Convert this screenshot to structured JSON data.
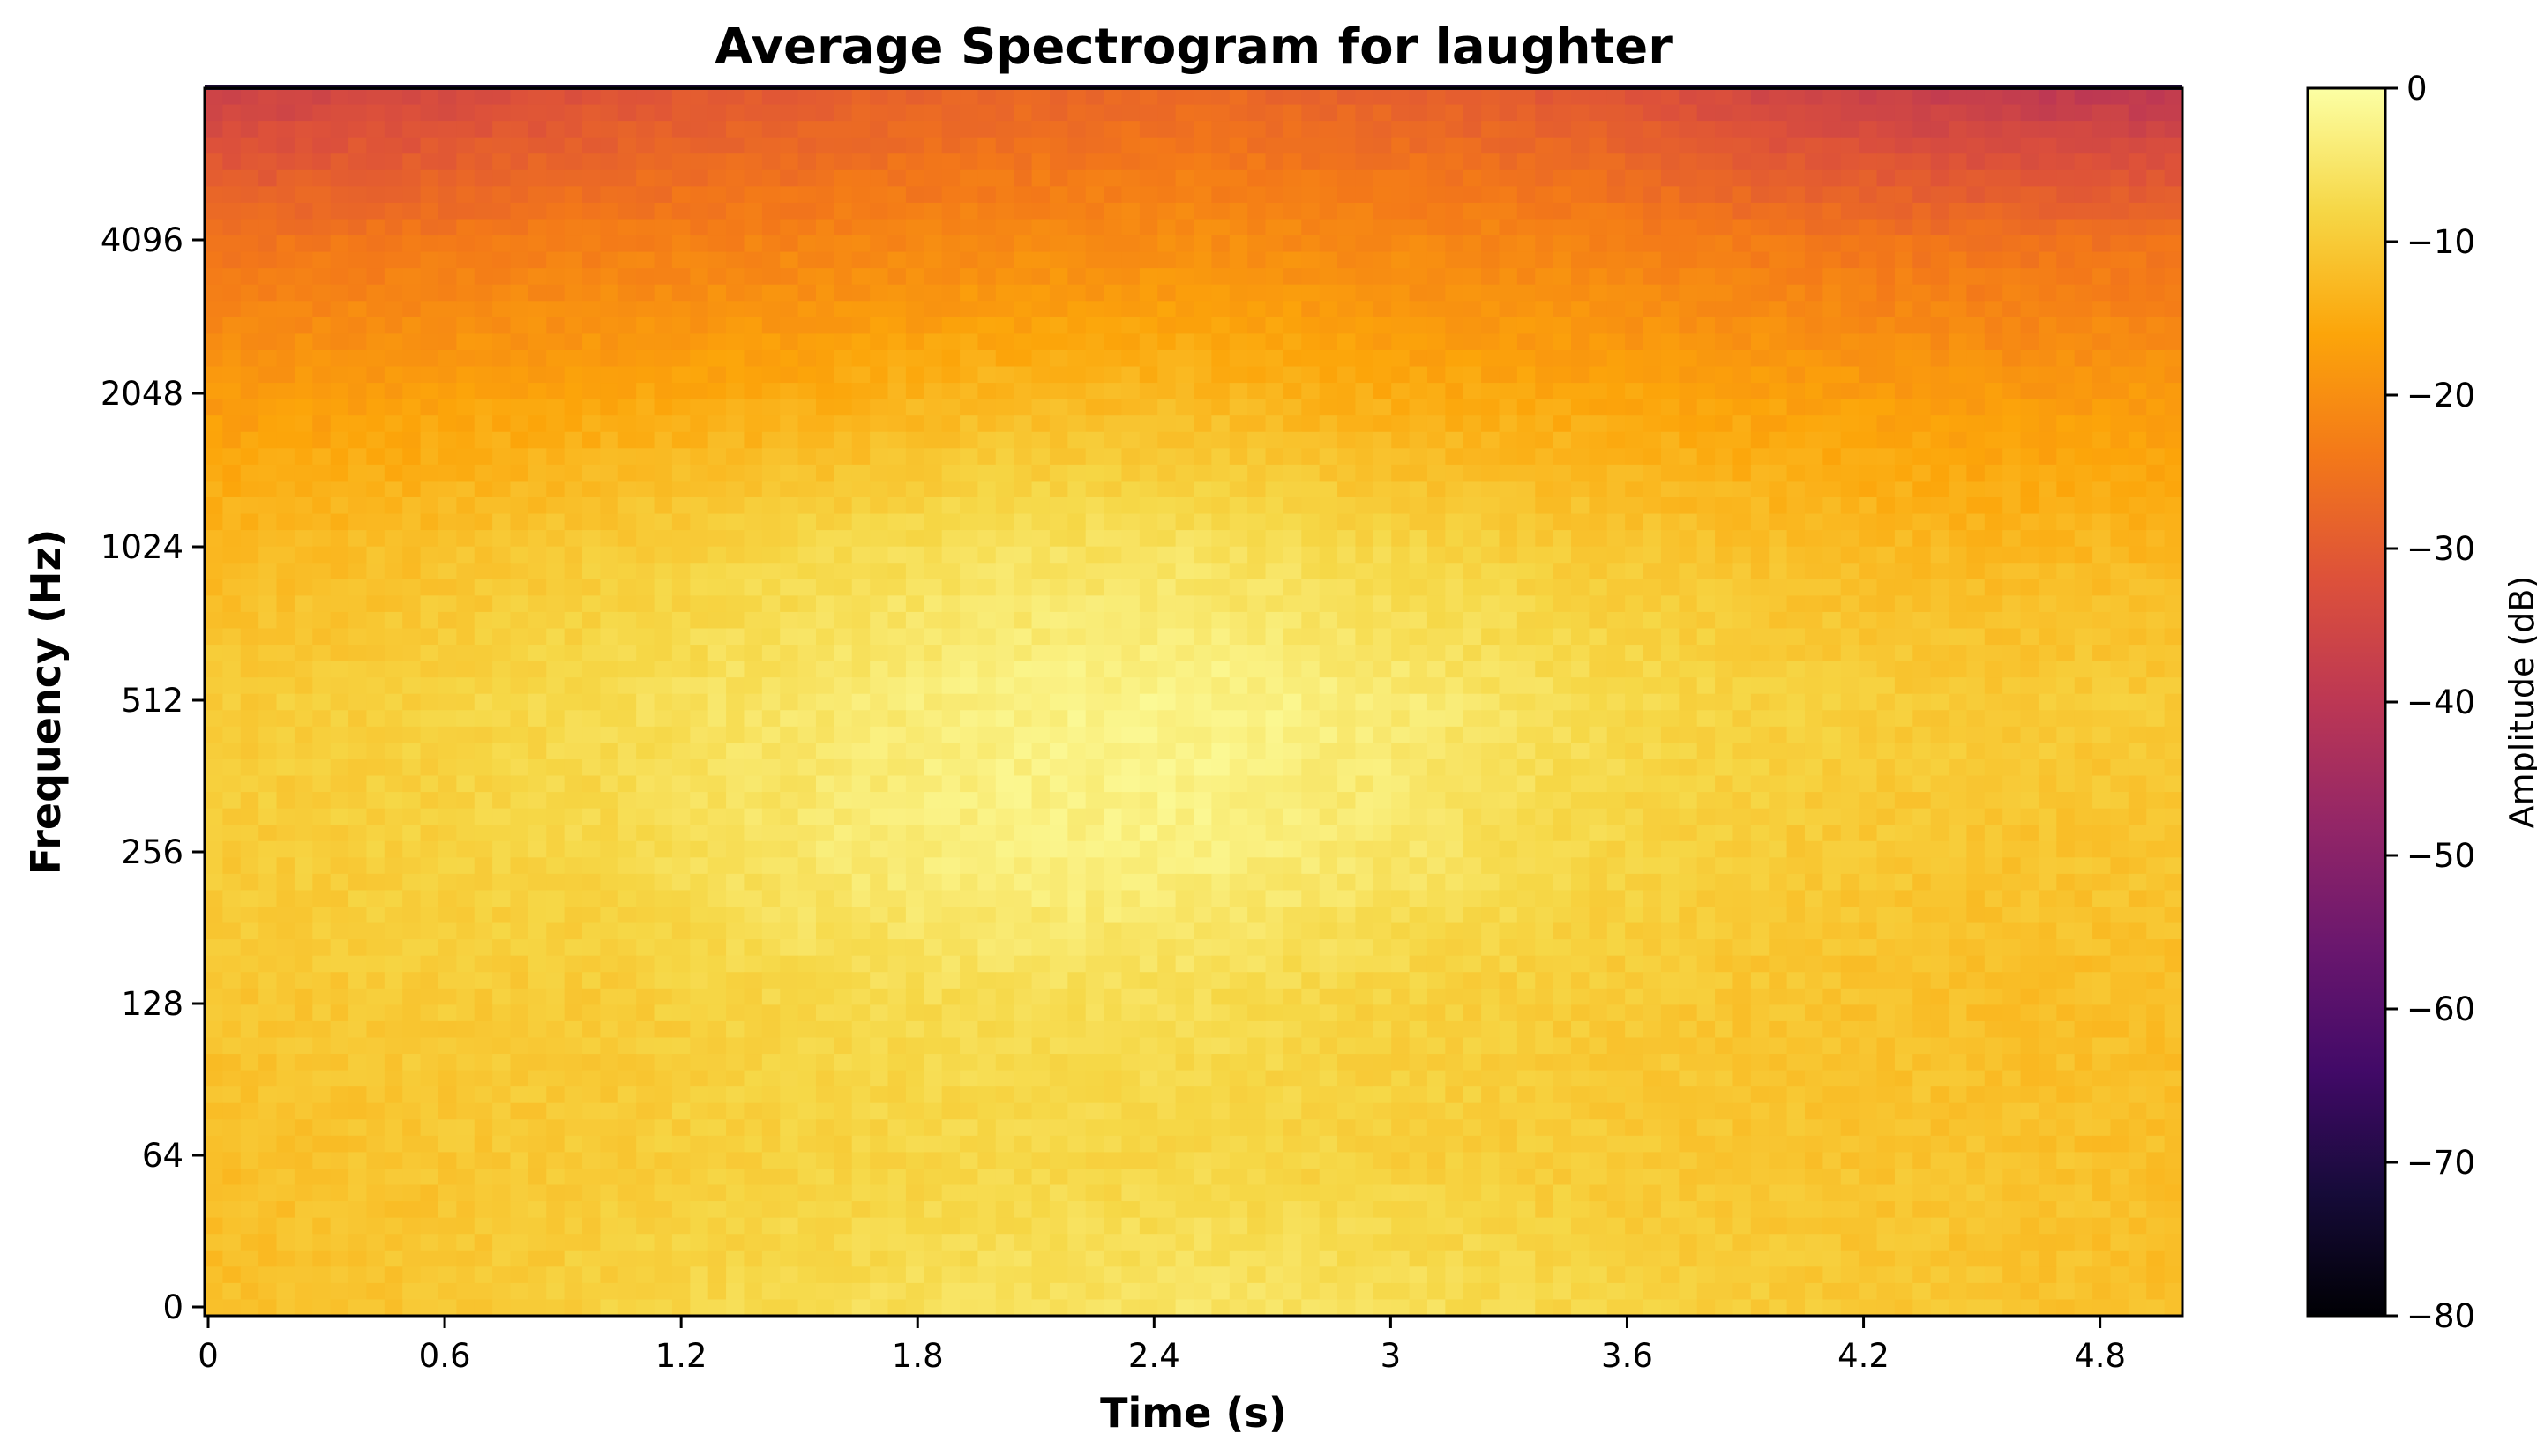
{
  "chart_data": {
    "type": "heatmap",
    "title": "Average Spectrogram for laughter",
    "xlabel": "Time (s)",
    "ylabel": "Frequency (Hz)",
    "xlim": [
      0,
      5.0
    ],
    "x_ticks": [
      "0",
      "0.6",
      "1.2",
      "1.8",
      "2.4",
      "3",
      "3.6",
      "4.2",
      "4.8"
    ],
    "x_tick_values": [
      0,
      0.6,
      1.2,
      1.8,
      2.4,
      3.0,
      3.6,
      4.2,
      4.8
    ],
    "y_scale": "log2",
    "y_ticks": [
      "0",
      "64",
      "128",
      "256",
      "512",
      "1024",
      "2048",
      "4096"
    ],
    "colormap": "inferno",
    "colorbar": {
      "label": "Amplitude (dB)",
      "range": [
        -80,
        0
      ],
      "ticks": [
        "0",
        "−10",
        "−20",
        "−30",
        "−40",
        "−50",
        "−60",
        "−70",
        "−80"
      ],
      "tick_values": [
        0,
        -10,
        -20,
        -30,
        -40,
        -50,
        -60,
        -70,
        -80
      ]
    },
    "time_bins": [
      0,
      0.5,
      1.0,
      1.5,
      2.0,
      2.5,
      3.0,
      3.5,
      4.0,
      4.5,
      5.0
    ],
    "freq_bins": [
      "0",
      "64",
      "128",
      "256",
      "512",
      "1024",
      "2048",
      "4096",
      "8192"
    ],
    "values_db": [
      [
        -12,
        -11,
        -9,
        -7,
        -6,
        -5,
        -6,
        -8,
        -10,
        -11,
        -12
      ],
      [
        -12,
        -11,
        -10,
        -9,
        -8,
        -8,
        -9,
        -10,
        -11,
        -11,
        -12
      ],
      [
        -11,
        -10,
        -10,
        -8,
        -7,
        -7,
        -9,
        -10,
        -11,
        -12,
        -12
      ],
      [
        -10,
        -9,
        -8,
        -5,
        -3,
        -3,
        -5,
        -8,
        -10,
        -11,
        -11
      ],
      [
        -10,
        -9,
        -7,
        -5,
        -3,
        -2,
        -4,
        -7,
        -9,
        -10,
        -10
      ],
      [
        -13,
        -12,
        -10,
        -8,
        -6,
        -6,
        -8,
        -10,
        -12,
        -13,
        -13
      ],
      [
        -18,
        -17,
        -16,
        -15,
        -13,
        -13,
        -15,
        -16,
        -17,
        -18,
        -18
      ],
      [
        -25,
        -24,
        -23,
        -22,
        -21,
        -20,
        -21,
        -22,
        -24,
        -25,
        -25
      ],
      [
        -37,
        -35,
        -32,
        -30,
        -28,
        -27,
        -29,
        -31,
        -36,
        -39,
        -40
      ]
    ]
  }
}
